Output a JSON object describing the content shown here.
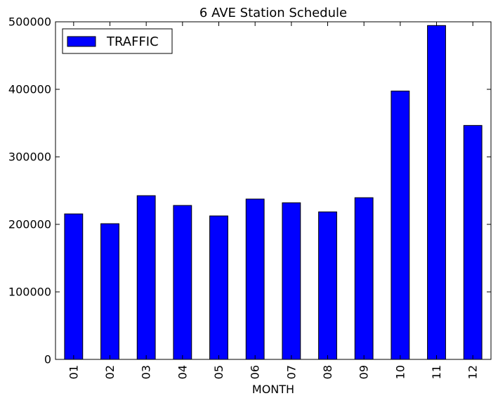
{
  "chart_data": {
    "type": "bar",
    "title": "6 AVE Station Schedule",
    "xlabel": "MONTH",
    "ylabel": "",
    "categories": [
      "01",
      "02",
      "03",
      "04",
      "05",
      "06",
      "07",
      "08",
      "09",
      "10",
      "11",
      "12"
    ],
    "series": [
      {
        "name": "TRAFFIC",
        "values": [
          215500,
          201000,
          242500,
          228000,
          212500,
          237500,
          232000,
          218500,
          239500,
          397500,
          494500,
          346500
        ]
      }
    ],
    "ylim": [
      0,
      500000
    ],
    "yticks": [
      0,
      100000,
      200000,
      300000,
      400000,
      500000
    ],
    "ytick_labels": [
      "0",
      "100000",
      "200000",
      "300000",
      "400000",
      "500000"
    ],
    "grid": false,
    "legend_position": "top-left",
    "colors": {
      "bar_fill": "#0000ff",
      "bar_stroke": "#000000",
      "axes": "#000000",
      "background": "#ffffff"
    }
  }
}
